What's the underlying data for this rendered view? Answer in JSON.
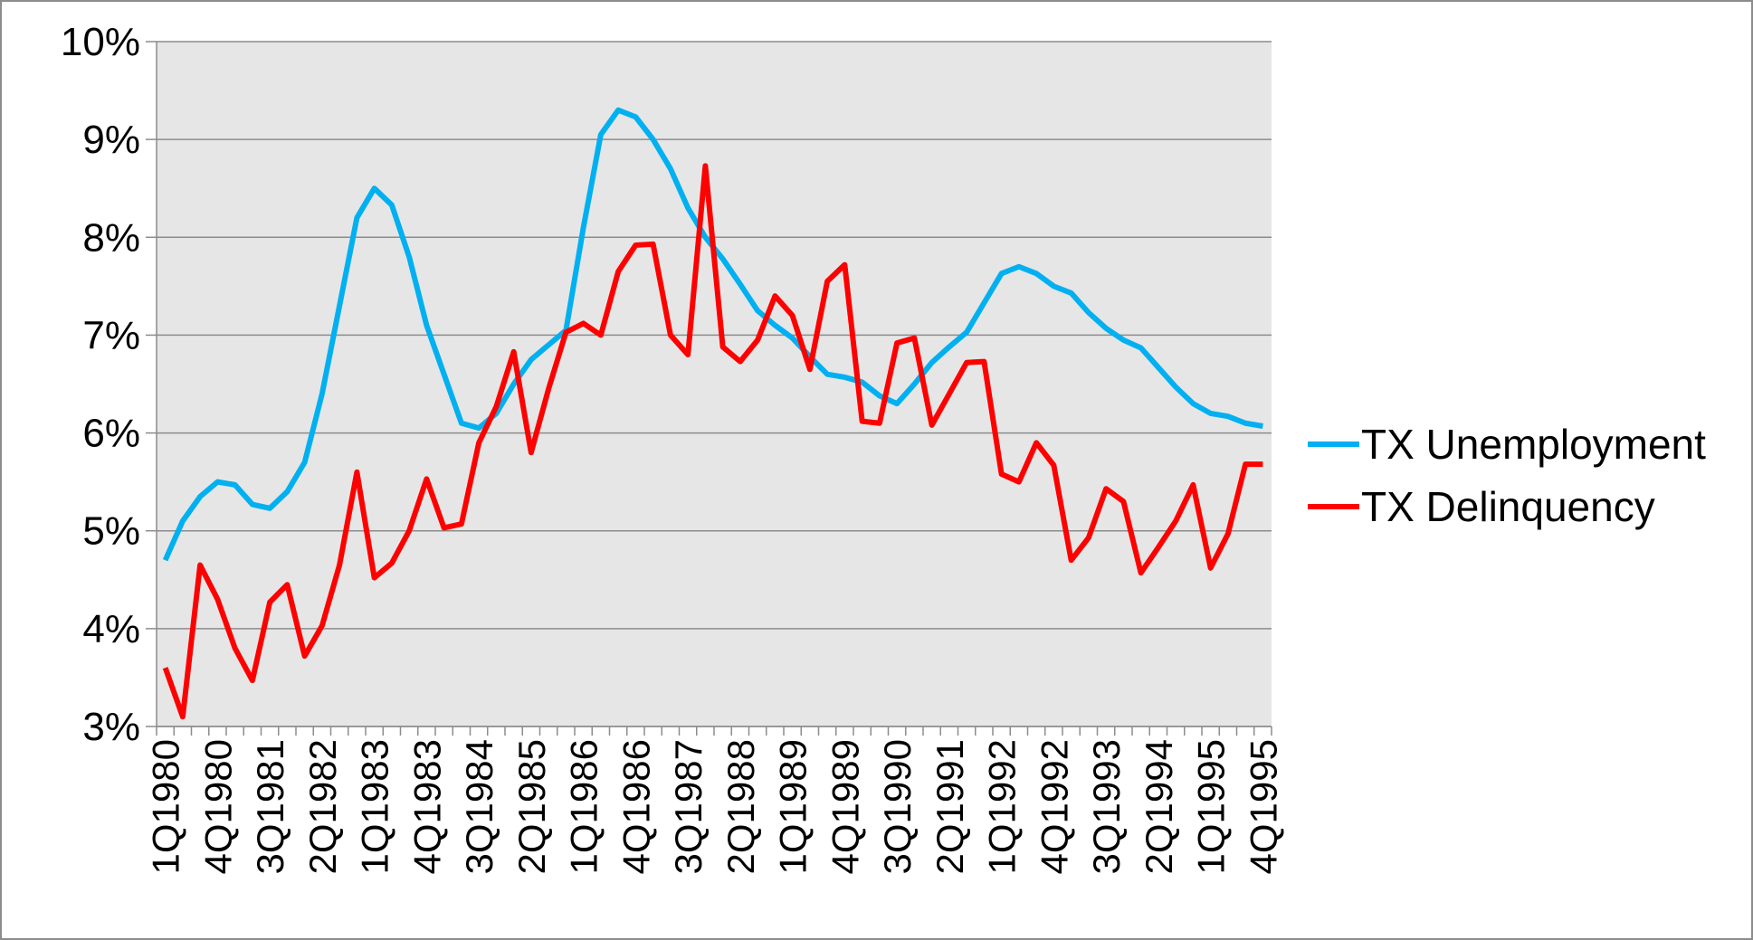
{
  "chart_data": {
    "type": "line",
    "categories": [
      "1Q1980",
      null,
      null,
      "4Q1980",
      null,
      null,
      "3Q1981",
      null,
      null,
      "2Q1982",
      null,
      null,
      "1Q1983",
      null,
      null,
      "4Q1983",
      null,
      null,
      "3Q1984",
      null,
      null,
      "2Q1985",
      null,
      null,
      "1Q1986",
      null,
      null,
      "4Q1986",
      null,
      null,
      "3Q1987",
      null,
      null,
      "2Q1988",
      null,
      null,
      "1Q1989",
      null,
      null,
      "4Q1989",
      null,
      null,
      "3Q1990",
      null,
      null,
      "2Q1991",
      null,
      null,
      "1Q1992",
      null,
      null,
      "4Q1992",
      null,
      null,
      "3Q1993",
      null,
      null,
      "2Q1994",
      null,
      null,
      "1Q1995",
      null,
      null,
      "4Q1995"
    ],
    "series": [
      {
        "name": "TX Unemployment",
        "color": "#00b0f0",
        "values": [
          4.7,
          5.1,
          5.35,
          5.5,
          5.47,
          5.27,
          5.23,
          5.4,
          5.7,
          6.4,
          7.3,
          8.2,
          8.5,
          8.33,
          7.8,
          7.1,
          6.6,
          6.1,
          6.05,
          6.2,
          6.5,
          6.75,
          6.9,
          7.05,
          8.1,
          9.05,
          9.3,
          9.23,
          9.0,
          8.7,
          8.3,
          8.0,
          7.78,
          7.52,
          7.25,
          7.1,
          6.97,
          6.78,
          6.6,
          6.57,
          6.52,
          6.38,
          6.3,
          6.5,
          6.72,
          6.88,
          7.03,
          7.33,
          7.63,
          7.7,
          7.63,
          7.5,
          7.43,
          7.23,
          7.07,
          6.95,
          6.87,
          6.67,
          6.47,
          6.3,
          6.2,
          6.17,
          6.1,
          6.07
        ]
      },
      {
        "name": "TX Delinquency",
        "color": "#ff0000",
        "values": [
          3.6,
          3.1,
          4.65,
          4.3,
          3.8,
          3.47,
          4.27,
          4.45,
          3.72,
          4.03,
          4.65,
          5.6,
          4.52,
          4.67,
          5.0,
          5.53,
          5.03,
          5.07,
          5.9,
          6.27,
          6.83,
          5.8,
          6.45,
          7.03,
          7.12,
          7.0,
          7.65,
          7.92,
          7.93,
          7.0,
          6.8,
          8.73,
          6.88,
          6.73,
          6.95,
          7.4,
          7.2,
          6.65,
          7.55,
          7.72,
          6.12,
          6.1,
          6.92,
          6.97,
          6.08,
          6.4,
          6.72,
          6.73,
          5.58,
          5.5,
          5.9,
          5.67,
          4.7,
          4.93,
          5.43,
          5.3,
          4.57,
          4.83,
          5.1,
          5.47,
          4.62,
          4.97,
          5.68,
          5.68
        ]
      }
    ],
    "ylim": [
      3,
      10
    ],
    "yticks": [
      {
        "value": 3,
        "label": "3%"
      },
      {
        "value": 4,
        "label": "4%"
      },
      {
        "value": 5,
        "label": "5%"
      },
      {
        "value": 6,
        "label": "6%"
      },
      {
        "value": 7,
        "label": "7%"
      },
      {
        "value": 8,
        "label": "8%"
      },
      {
        "value": 9,
        "label": "9%"
      },
      {
        "value": 10,
        "label": "10%"
      }
    ],
    "grid": true,
    "legend": "right"
  }
}
